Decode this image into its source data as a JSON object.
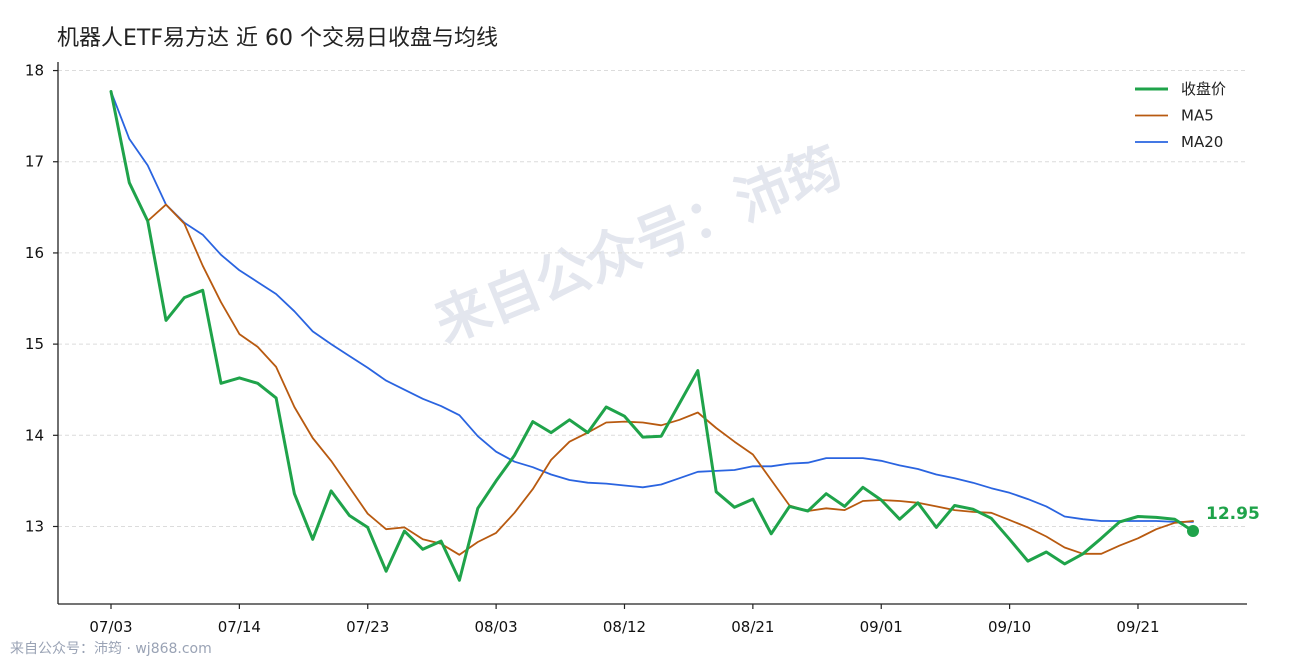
{
  "chart_data": {
    "type": "line",
    "title": "机器人ETF易方达 近 60 个交易日收盘与均线",
    "xlabel": "",
    "ylabel": "",
    "ylim": [
      12.15,
      18.05
    ],
    "yticks": [
      13,
      14,
      15,
      16,
      17,
      18
    ],
    "grid": true,
    "legend_position": "top-right",
    "x_ticks": [
      {
        "index": 0,
        "label": "07/03"
      },
      {
        "index": 7,
        "label": "07/14"
      },
      {
        "index": 14,
        "label": "07/23"
      },
      {
        "index": 21,
        "label": "08/03"
      },
      {
        "index": 28,
        "label": "08/12"
      },
      {
        "index": 35,
        "label": "08/21"
      },
      {
        "index": 42,
        "label": "09/01"
      },
      {
        "index": 49,
        "label": "09/10"
      },
      {
        "index": 56,
        "label": "09/21"
      }
    ],
    "series": [
      {
        "name": "收盘价",
        "color": "#1fa34a",
        "values": [
          17.77,
          16.77,
          16.35,
          15.26,
          15.51,
          15.59,
          14.57,
          14.63,
          14.57,
          14.41,
          13.36,
          12.86,
          13.39,
          13.12,
          12.99,
          12.51,
          12.95,
          12.75,
          12.84,
          12.41,
          13.2,
          13.5,
          13.78,
          14.15,
          14.03,
          14.17,
          14.03,
          14.31,
          14.21,
          13.98,
          13.99,
          14.35,
          14.71,
          13.38,
          13.21,
          13.3,
          12.92,
          13.22,
          13.17,
          13.36,
          13.22,
          13.43,
          13.29,
          13.08,
          13.26,
          12.99,
          13.23,
          13.19,
          13.09,
          12.86,
          12.62,
          12.72,
          12.59,
          12.7,
          12.87,
          13.05,
          13.11,
          13.1,
          13.08,
          12.95
        ]
      },
      {
        "name": "MA5",
        "color": "#b85a10",
        "values": [
          17.77,
          16.77,
          16.35,
          16.53,
          16.32,
          15.86,
          15.46,
          15.11,
          14.97,
          14.75,
          14.31,
          13.97,
          13.72,
          13.43,
          13.14,
          12.97,
          12.99,
          12.86,
          12.81,
          12.69,
          12.83,
          12.93,
          13.15,
          13.41,
          13.73,
          13.93,
          14.03,
          14.14,
          14.15,
          14.14,
          14.11,
          14.17,
          14.25,
          14.08,
          13.93,
          13.79,
          13.51,
          13.23,
          13.17,
          13.2,
          13.18,
          13.28,
          13.29,
          13.28,
          13.26,
          13.22,
          13.18,
          13.16,
          13.15,
          13.07,
          12.99,
          12.89,
          12.77,
          12.7,
          12.7,
          12.79,
          12.87,
          12.97,
          13.04,
          13.06
        ]
      },
      {
        "name": "MA20",
        "color": "#2a64e0",
        "values": [
          17.77,
          17.25,
          16.96,
          16.53,
          16.33,
          16.2,
          15.98,
          15.81,
          15.68,
          15.55,
          15.36,
          15.14,
          15.0,
          14.87,
          14.74,
          14.6,
          14.5,
          14.4,
          14.32,
          14.22,
          13.99,
          13.82,
          13.71,
          13.65,
          13.57,
          13.51,
          13.48,
          13.47,
          13.45,
          13.43,
          13.46,
          13.53,
          13.6,
          13.61,
          13.62,
          13.66,
          13.66,
          13.69,
          13.7,
          13.75,
          13.75,
          13.75,
          13.72,
          13.67,
          13.63,
          13.57,
          13.53,
          13.48,
          13.42,
          13.37,
          13.3,
          13.22,
          13.11,
          13.08,
          13.06,
          13.06,
          13.06,
          13.06,
          13.05,
          13.05
        ]
      }
    ],
    "last_value_label": "12.95"
  },
  "watermark": "来自公众号：沛筠",
  "footer": "来自公众号：沛筠 · wj868.com"
}
